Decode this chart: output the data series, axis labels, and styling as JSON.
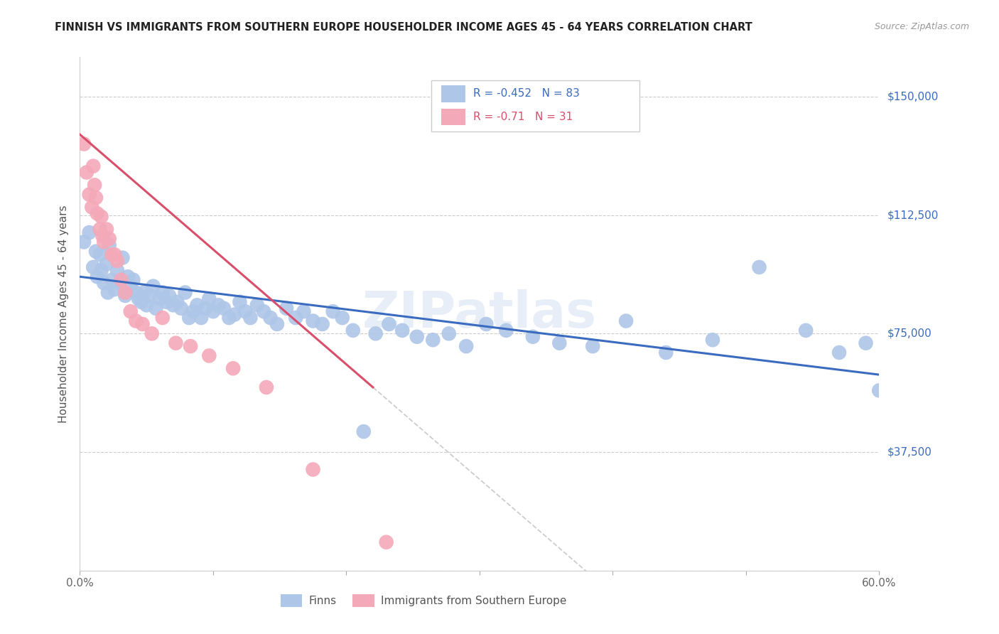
{
  "title": "FINNISH VS IMMIGRANTS FROM SOUTHERN EUROPE HOUSEHOLDER INCOME AGES 45 - 64 YEARS CORRELATION CHART",
  "source": "Source: ZipAtlas.com",
  "ylabel": "Householder Income Ages 45 - 64 years",
  "label_finns": "Finns",
  "label_imm": "Immigrants from Southern Europe",
  "xmin": 0.0,
  "xmax": 0.6,
  "ymin": 0,
  "ymax": 162500,
  "yticks": [
    0,
    37500,
    75000,
    112500,
    150000
  ],
  "ytick_labels": [
    "",
    "$37,500",
    "$75,000",
    "$112,500",
    "$150,000"
  ],
  "xticks": [
    0.0,
    0.1,
    0.2,
    0.3,
    0.4,
    0.5,
    0.6
  ],
  "xtick_labels": [
    "0.0%",
    "",
    "",
    "",
    "",
    "",
    "60.0%"
  ],
  "finns_R": -0.452,
  "finns_N": 83,
  "imm_R": -0.71,
  "imm_N": 31,
  "finns_color": "#aec6e8",
  "imm_color": "#f4a9b8",
  "finns_line_color": "#3a6bbf",
  "imm_line_color": "#d94f6b",
  "watermark": "ZIPatlas",
  "finns_x": [
    0.003,
    0.007,
    0.01,
    0.012,
    0.013,
    0.015,
    0.016,
    0.018,
    0.02,
    0.021,
    0.022,
    0.024,
    0.026,
    0.028,
    0.03,
    0.032,
    0.034,
    0.036,
    0.038,
    0.04,
    0.042,
    0.044,
    0.046,
    0.048,
    0.05,
    0.052,
    0.055,
    0.057,
    0.06,
    0.062,
    0.065,
    0.067,
    0.07,
    0.073,
    0.076,
    0.079,
    0.082,
    0.085,
    0.088,
    0.091,
    0.094,
    0.097,
    0.1,
    0.104,
    0.108,
    0.112,
    0.116,
    0.12,
    0.124,
    0.128,
    0.133,
    0.138,
    0.143,
    0.148,
    0.155,
    0.162,
    0.168,
    0.175,
    0.182,
    0.19,
    0.197,
    0.205,
    0.213,
    0.222,
    0.232,
    0.242,
    0.253,
    0.265,
    0.277,
    0.29,
    0.305,
    0.32,
    0.34,
    0.36,
    0.385,
    0.41,
    0.44,
    0.475,
    0.51,
    0.545,
    0.57,
    0.59,
    0.6
  ],
  "finns_y": [
    104000,
    107000,
    96000,
    101000,
    93000,
    100000,
    95000,
    91000,
    97000,
    88000,
    103000,
    92000,
    89000,
    95000,
    91000,
    99000,
    87000,
    93000,
    90000,
    92000,
    88000,
    86000,
    85000,
    88000,
    84000,
    87000,
    90000,
    83000,
    86000,
    88000,
    85000,
    87000,
    84000,
    85000,
    83000,
    88000,
    80000,
    82000,
    84000,
    80000,
    83000,
    86000,
    82000,
    84000,
    83000,
    80000,
    81000,
    85000,
    82000,
    80000,
    84000,
    82000,
    80000,
    78000,
    83000,
    80000,
    82000,
    79000,
    78000,
    82000,
    80000,
    76000,
    44000,
    75000,
    78000,
    76000,
    74000,
    73000,
    75000,
    71000,
    78000,
    76000,
    74000,
    72000,
    71000,
    79000,
    69000,
    73000,
    96000,
    76000,
    69000,
    72000,
    57000
  ],
  "imm_x": [
    0.003,
    0.005,
    0.007,
    0.009,
    0.01,
    0.011,
    0.012,
    0.013,
    0.015,
    0.016,
    0.017,
    0.018,
    0.02,
    0.022,
    0.024,
    0.026,
    0.028,
    0.031,
    0.034,
    0.038,
    0.042,
    0.047,
    0.054,
    0.062,
    0.072,
    0.083,
    0.097,
    0.115,
    0.14,
    0.175,
    0.23
  ],
  "imm_y": [
    135000,
    126000,
    119000,
    115000,
    128000,
    122000,
    118000,
    113000,
    108000,
    112000,
    106000,
    104000,
    108000,
    105000,
    100000,
    100000,
    98000,
    92000,
    88000,
    82000,
    79000,
    78000,
    75000,
    80000,
    72000,
    71000,
    68000,
    64000,
    58000,
    32000,
    9000
  ],
  "finn_line_x0": 0.0,
  "finn_line_y0": 93000,
  "finn_line_x1": 0.6,
  "finn_line_y1": 62000,
  "imm_line_x0": 0.0,
  "imm_line_y0": 138000,
  "imm_line_x1": 0.22,
  "imm_line_y1": 58000
}
